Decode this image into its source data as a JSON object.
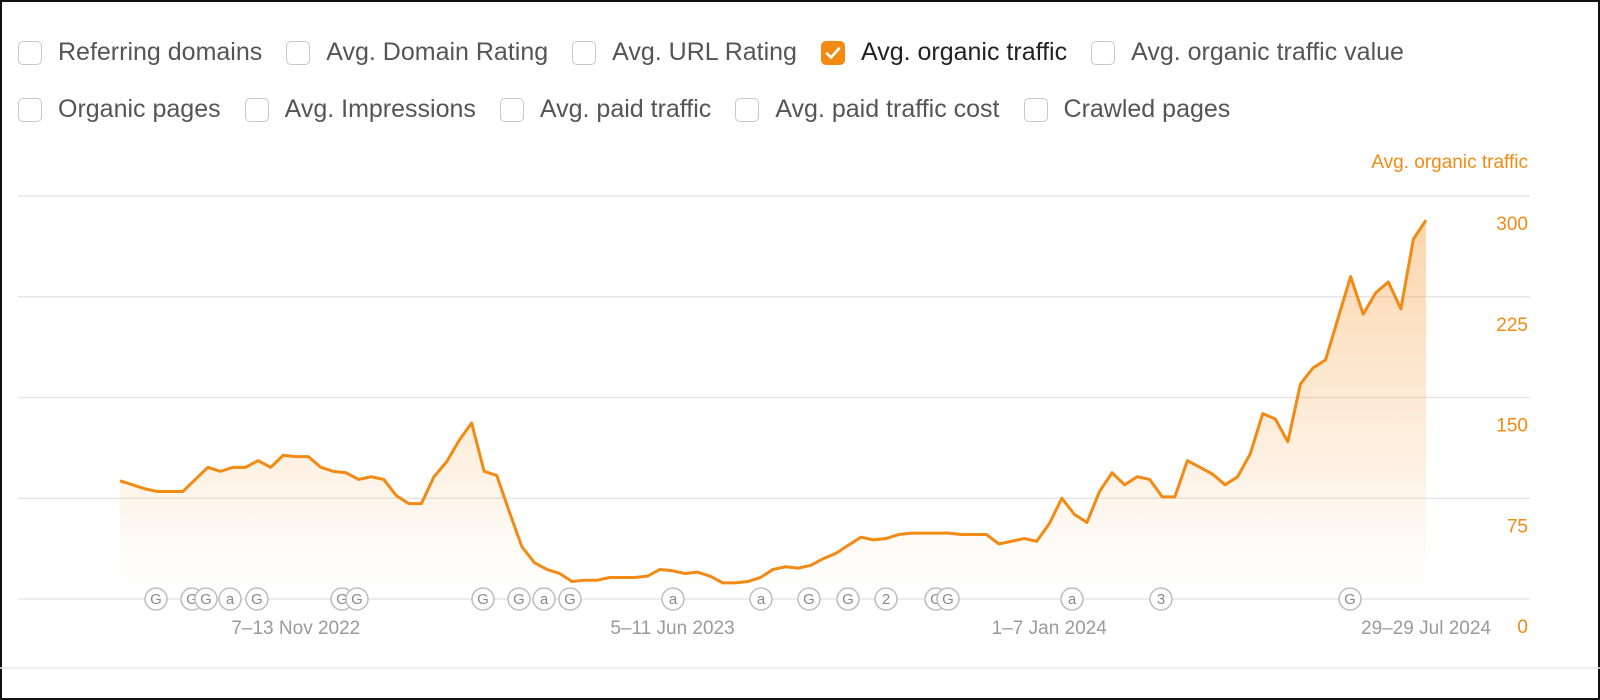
{
  "metric_options": [
    [
      {
        "label": "Referring domains",
        "checked": false
      },
      {
        "label": "Avg. Domain Rating",
        "checked": false
      },
      {
        "label": "Avg. URL Rating",
        "checked": false
      },
      {
        "label": "Avg. organic traffic",
        "checked": true
      },
      {
        "label": "Avg. organic traffic value",
        "checked": false
      }
    ],
    [
      {
        "label": "Organic pages",
        "checked": false
      },
      {
        "label": "Avg. Impressions",
        "checked": false
      },
      {
        "label": "Avg. paid traffic",
        "checked": false
      },
      {
        "label": "Avg. paid traffic cost",
        "checked": false
      },
      {
        "label": "Crawled pages",
        "checked": false
      }
    ]
  ],
  "chart_data": {
    "type": "area",
    "y_axis_label": "Avg. organic traffic",
    "color": "#f28a14",
    "categories": [
      null,
      null,
      null,
      null,
      null,
      null,
      null,
      null,
      null,
      null,
      null,
      null,
      null,
      null,
      "7–13 Nov 2022",
      null,
      null,
      null,
      null,
      null,
      null,
      null,
      null,
      null,
      null,
      null,
      null,
      null,
      null,
      null,
      null,
      null,
      null,
      null,
      null,
      null,
      null,
      null,
      null,
      null,
      null,
      null,
      null,
      null,
      "5–11 Jun 2023",
      null,
      null,
      null,
      null,
      null,
      null,
      null,
      null,
      null,
      null,
      null,
      null,
      null,
      null,
      null,
      null,
      null,
      null,
      null,
      null,
      null,
      null,
      null,
      null,
      null,
      null,
      null,
      null,
      null,
      "1–7 Jan 2024",
      null,
      null,
      null,
      null,
      null,
      null,
      null,
      null,
      null,
      null,
      null,
      null,
      null,
      null,
      null,
      null,
      null,
      null,
      null,
      null,
      null,
      null,
      null,
      null,
      null,
      null,
      null,
      null,
      null,
      "29–29 Jul 2024"
    ],
    "values": [
      88,
      85,
      82,
      80,
      80,
      80,
      89,
      98,
      95,
      98,
      98,
      103,
      98,
      107,
      106,
      106,
      98,
      95,
      94,
      89,
      91,
      89,
      77,
      71,
      71,
      91,
      102,
      118,
      131,
      95,
      92,
      65,
      39,
      27,
      22,
      19,
      13,
      14,
      14,
      16,
      16,
      16,
      17,
      22,
      21,
      19,
      20,
      17,
      12,
      12,
      13,
      16,
      22,
      24,
      23,
      25,
      30,
      34,
      40,
      46,
      44,
      45,
      48,
      49,
      49,
      49,
      49,
      48,
      48,
      48,
      41,
      43,
      45,
      43,
      56,
      75,
      63,
      57,
      80,
      94,
      85,
      91,
      89,
      76,
      76,
      103,
      98,
      93,
      85,
      91,
      108,
      138,
      134,
      117,
      160,
      172,
      178,
      209,
      240,
      212,
      228,
      236,
      216,
      268,
      282
    ],
    "ylim": [
      0,
      300
    ],
    "yticks": [
      0,
      75,
      150,
      225,
      300
    ],
    "grid": true,
    "annotations": [
      "G",
      "G",
      "G",
      "a",
      "G",
      "G",
      "G",
      "G",
      "G",
      "a",
      "G",
      "a",
      "a",
      "G",
      "G",
      "2",
      "G",
      "G",
      "a",
      "3",
      "G"
    ]
  }
}
